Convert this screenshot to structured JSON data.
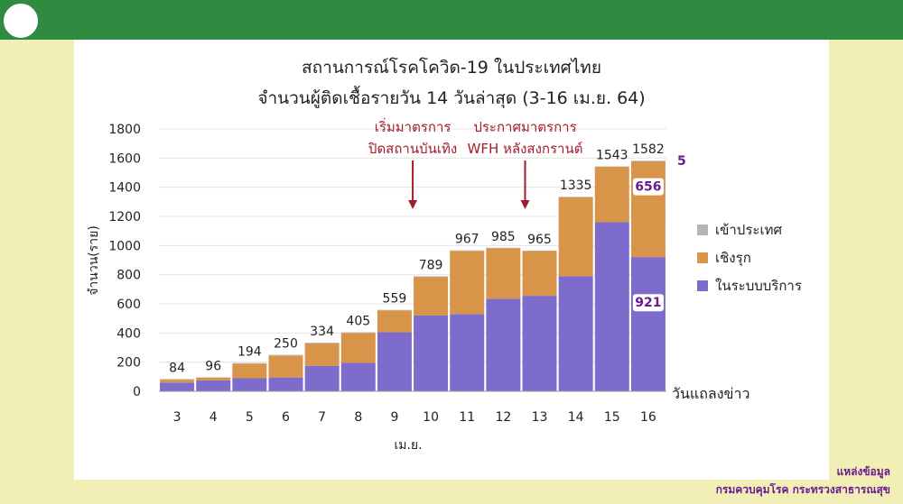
{
  "header": {
    "logo_icon": "moph-emblem-icon"
  },
  "colors": {
    "header_bar": "#2e8b3f",
    "background": "#f1eeb6",
    "inbound": "#b5b5b5",
    "proactive": "#d89549",
    "in_system": "#7e6ccd",
    "annotation": "#a31c2d",
    "label_purple": "#6a1b8f"
  },
  "source": {
    "line1": "แหล่งข้อมูล",
    "line2": "กรมควบคุมโรค กระทรวงสาธารณสุข"
  },
  "chart_data": {
    "type": "bar",
    "stacked": true,
    "title": "สถานการณ์โรคโควิด-19 ในประเทศไทย",
    "subtitle": "จำนวนผู้ติดเชื้อรายวัน 14 วันล่าสุด (3-16 เม.ย. 64)",
    "xlabel": "เม.ย.",
    "xlabel_right": "วันแถลงข่าว",
    "ylabel": "จำนวน(ราย)",
    "ylim": [
      0,
      1800
    ],
    "yticks": [
      0,
      200,
      400,
      600,
      800,
      1000,
      1200,
      1400,
      1600,
      1800
    ],
    "categories": [
      "3",
      "4",
      "5",
      "6",
      "7",
      "8",
      "9",
      "10",
      "11",
      "12",
      "13",
      "14",
      "15",
      "16"
    ],
    "totals": [
      84,
      96,
      194,
      250,
      334,
      405,
      559,
      789,
      967,
      985,
      965,
      1335,
      1543,
      1582
    ],
    "series": [
      {
        "name": "ในระบบบริการ",
        "color": "#7e6ccd",
        "values": [
          60,
          75,
          90,
          95,
          175,
          195,
          405,
          520,
          530,
          635,
          655,
          790,
          1160,
          921
        ]
      },
      {
        "name": "เชิงรุก",
        "color": "#d89549",
        "values": [
          20,
          18,
          100,
          150,
          154,
          205,
          150,
          265,
          433,
          347,
          307,
          541,
          380,
          656
        ]
      },
      {
        "name": "เข้าประเทศ",
        "color": "#b5b5b5",
        "values": [
          4,
          3,
          4,
          5,
          5,
          5,
          4,
          4,
          4,
          3,
          3,
          4,
          3,
          5
        ]
      }
    ],
    "legend_placement": "right",
    "legend_order": [
      "เข้าประเทศ",
      "เชิงรุก",
      "ในระบบบริการ"
    ],
    "segment_labels": [
      {
        "category": "16",
        "series": "ในระบบบริการ",
        "text": "921"
      },
      {
        "category": "16",
        "series": "เชิงรุก",
        "text": "656"
      },
      {
        "category": "16",
        "series": "เข้าประเทศ",
        "text": "5"
      }
    ],
    "annotations": [
      {
        "category": "10",
        "lines": [
          "เริ่มมาตรการ",
          "ปิดสถานบันเทิง"
        ]
      },
      {
        "category": "13",
        "lines": [
          "ประกาศมาตรการ",
          "WFH หลังสงกรานต์"
        ]
      }
    ]
  }
}
